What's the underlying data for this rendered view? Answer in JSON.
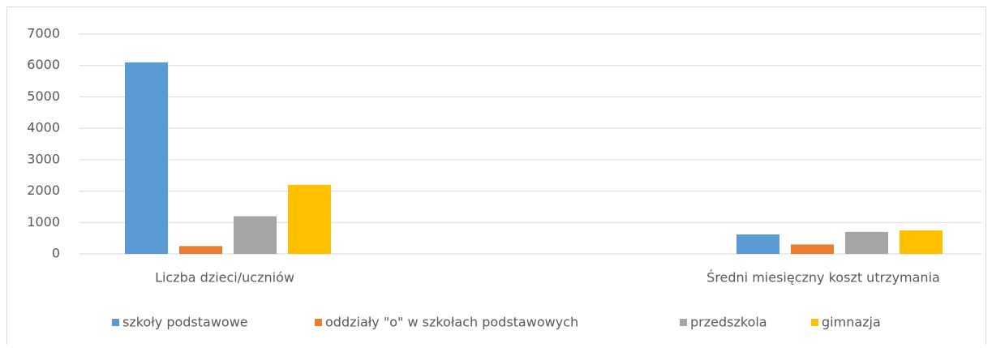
{
  "chart_data": {
    "type": "bar",
    "categories": [
      "Liczba dzieci/uczniów",
      "Średni miesięczny koszt utrzymania"
    ],
    "series": [
      {
        "name": "szkoły podstawowe",
        "color": "#5b9bd5",
        "values": [
          6100,
          620
        ]
      },
      {
        "name": "oddziały \"o\" w szkołach podstawowych",
        "color": "#ed7d31",
        "values": [
          250,
          300
        ]
      },
      {
        "name": "przedszkola",
        "color": "#a5a5a5",
        "values": [
          1200,
          700
        ]
      },
      {
        "name": "gimnazja",
        "color": "#ffc000",
        "values": [
          2200,
          750
        ]
      }
    ],
    "ylim": [
      0,
      7000
    ],
    "yticks": [
      0,
      1000,
      2000,
      3000,
      4000,
      5000,
      6000,
      7000
    ],
    "grid": true,
    "legend": "bottom"
  }
}
